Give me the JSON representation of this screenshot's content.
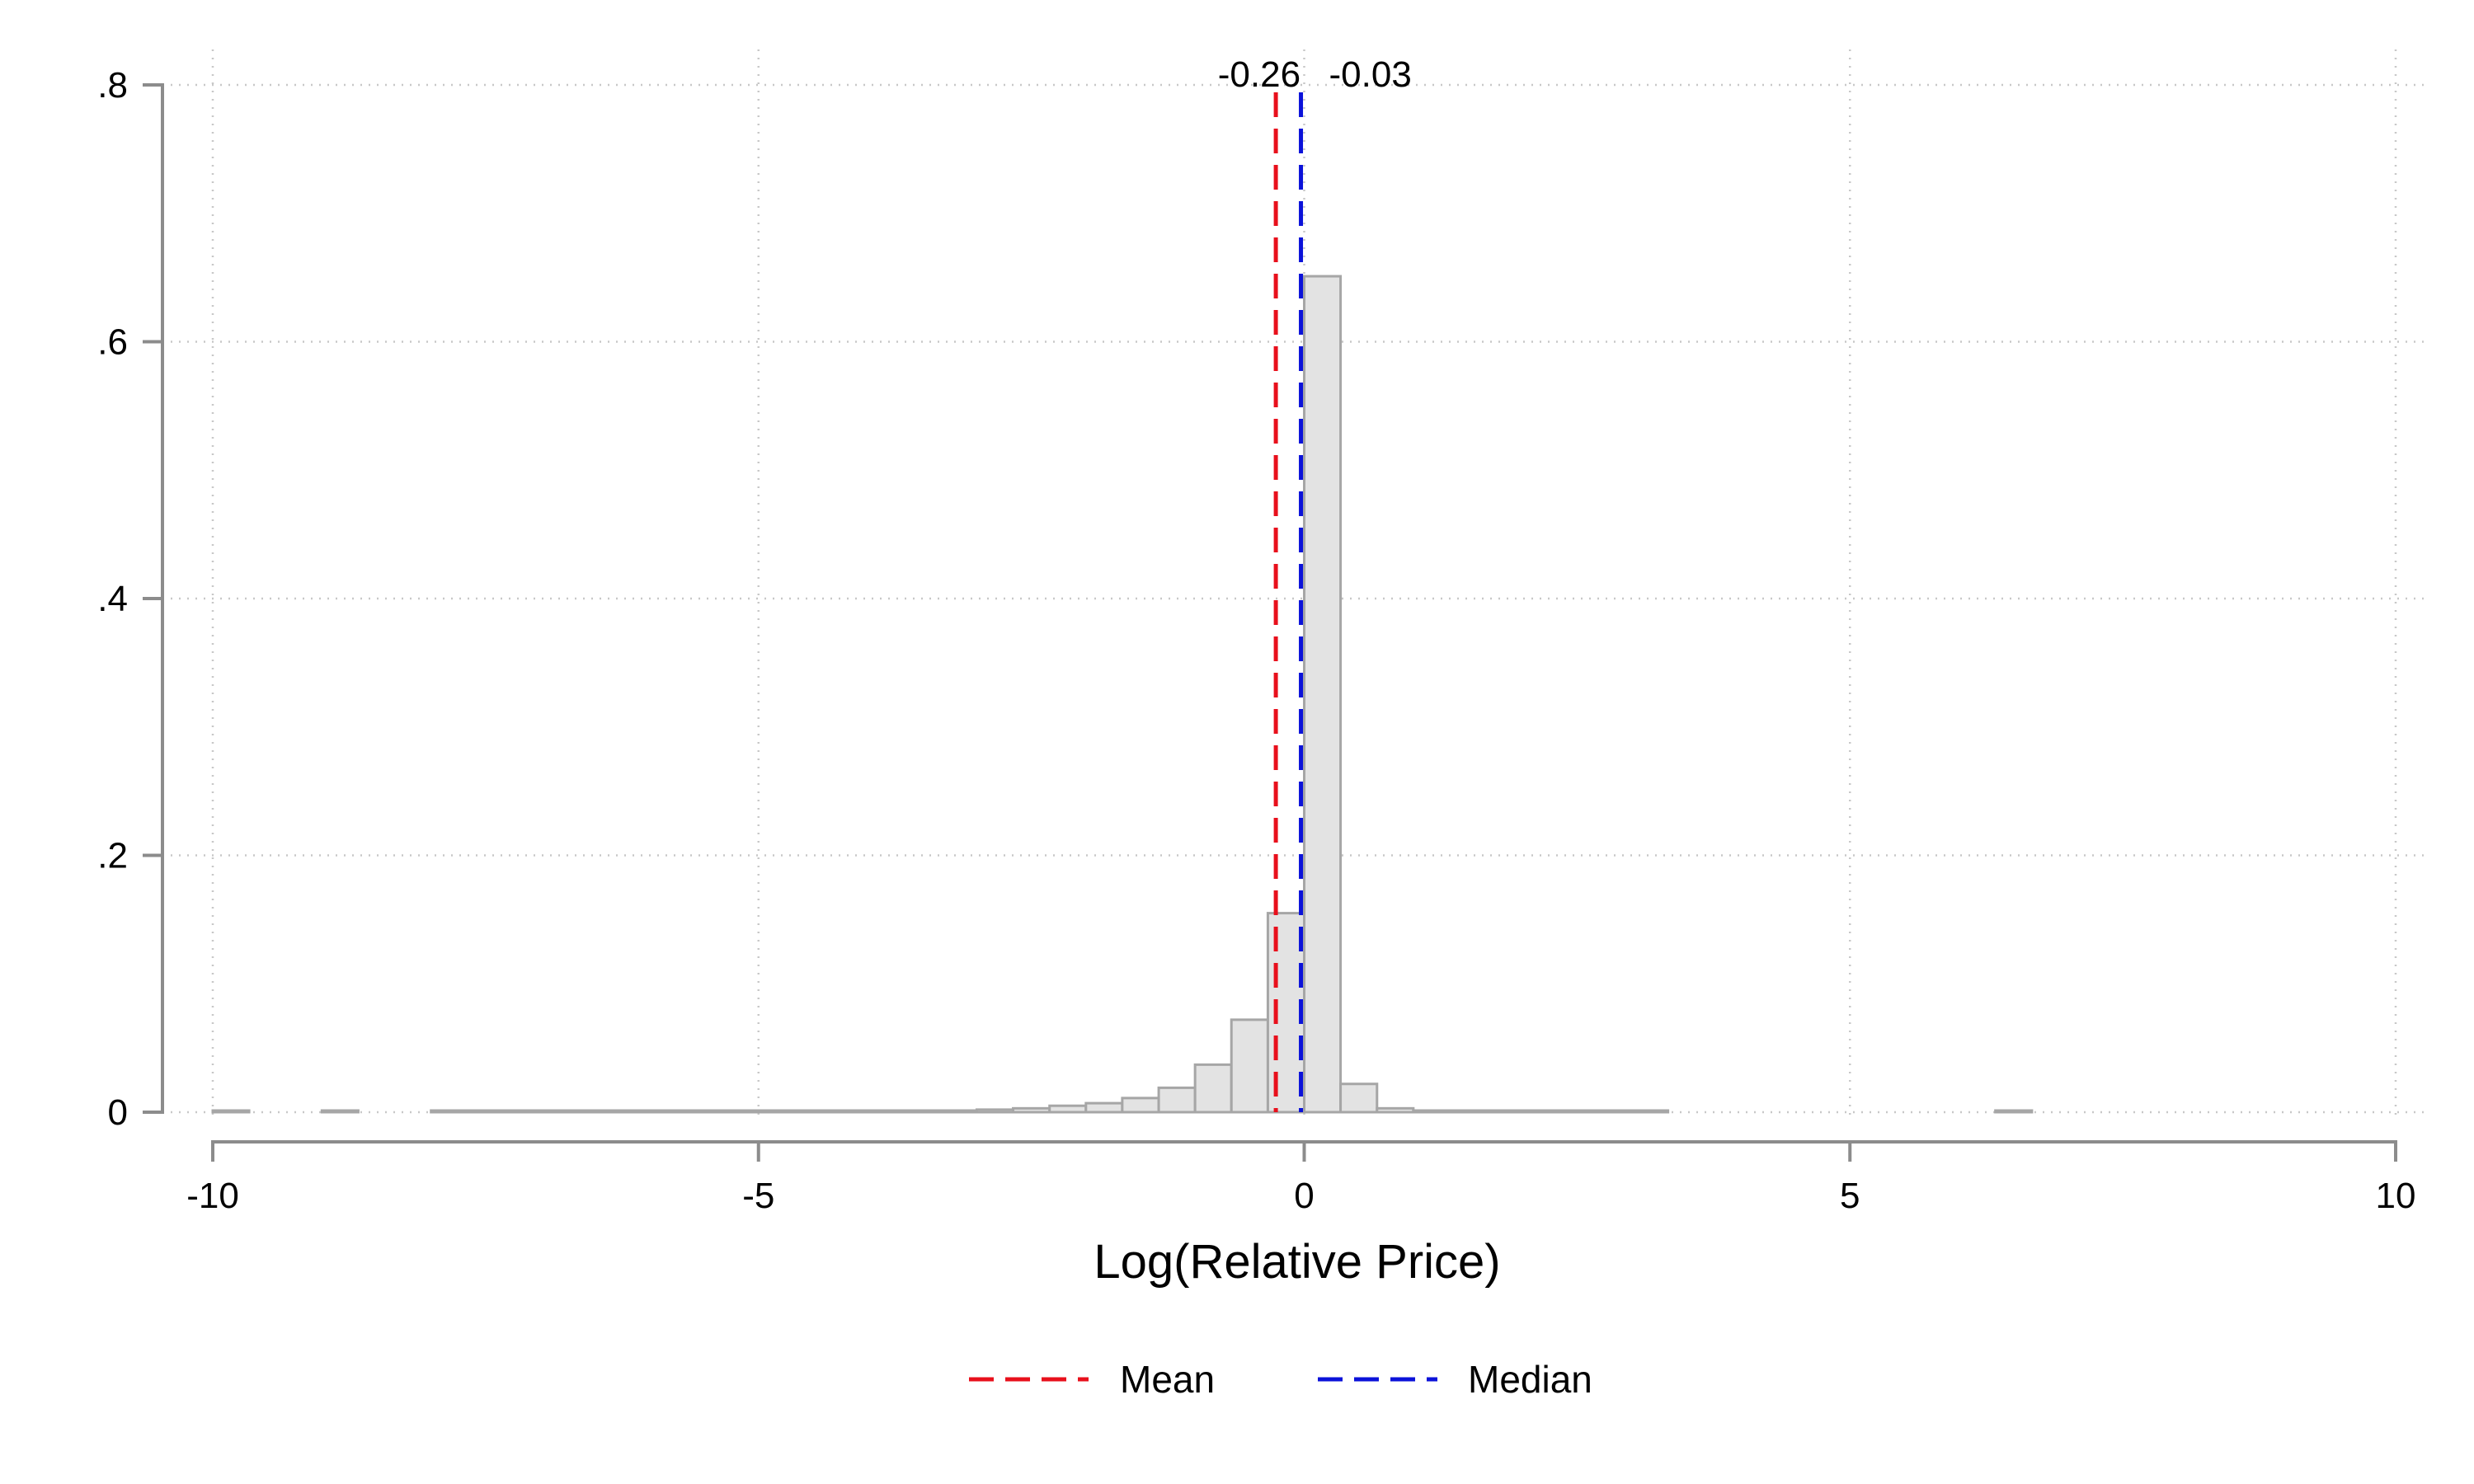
{
  "chart_data": {
    "type": "bar",
    "subtype": "histogram",
    "xlabel": "Log(Relative Price)",
    "ylabel": "",
    "xlim": [
      -10,
      10
    ],
    "ylim": [
      0,
      0.8
    ],
    "x_ticks": [
      -10,
      -5,
      0,
      5,
      10
    ],
    "x_tick_labels": [
      "-10",
      "-5",
      "0",
      "5",
      "10"
    ],
    "y_ticks": [
      0,
      0.2,
      0.4,
      0.6,
      0.8
    ],
    "y_tick_labels": [
      "0",
      ".2",
      ".4",
      ".6",
      ".8"
    ],
    "grid": true,
    "legend_position": "bottom",
    "bin_width": 0.333,
    "bins": [
      {
        "x0": -10.0,
        "x1": -9.667,
        "value": 0.001
      },
      {
        "x0": -9.0,
        "x1": -8.667,
        "value": 0.001
      },
      {
        "x0": -8.0,
        "x1": -7.667,
        "value": 0.001
      },
      {
        "x0": -7.667,
        "x1": -7.333,
        "value": 0.001
      },
      {
        "x0": -7.333,
        "x1": -7.0,
        "value": 0.001
      },
      {
        "x0": -7.0,
        "x1": -6.667,
        "value": 0.001
      },
      {
        "x0": -6.667,
        "x1": -6.333,
        "value": 0.001
      },
      {
        "x0": -6.333,
        "x1": -6.0,
        "value": 0.001
      },
      {
        "x0": -6.0,
        "x1": -5.667,
        "value": 0.001
      },
      {
        "x0": -5.667,
        "x1": -5.333,
        "value": 0.001
      },
      {
        "x0": -5.333,
        "x1": -5.0,
        "value": 0.001
      },
      {
        "x0": -5.0,
        "x1": -4.667,
        "value": 0.001
      },
      {
        "x0": -4.667,
        "x1": -4.333,
        "value": 0.001
      },
      {
        "x0": -4.333,
        "x1": -4.0,
        "value": 0.001
      },
      {
        "x0": -4.0,
        "x1": -3.667,
        "value": 0.001
      },
      {
        "x0": -3.667,
        "x1": -3.333,
        "value": 0.001
      },
      {
        "x0": -3.333,
        "x1": -3.0,
        "value": 0.001
      },
      {
        "x0": -3.0,
        "x1": -2.667,
        "value": 0.002
      },
      {
        "x0": -2.667,
        "x1": -2.333,
        "value": 0.003
      },
      {
        "x0": -2.333,
        "x1": -2.0,
        "value": 0.005
      },
      {
        "x0": -2.0,
        "x1": -1.667,
        "value": 0.007
      },
      {
        "x0": -1.667,
        "x1": -1.333,
        "value": 0.011
      },
      {
        "x0": -1.333,
        "x1": -1.0,
        "value": 0.019
      },
      {
        "x0": -1.0,
        "x1": -0.667,
        "value": 0.037
      },
      {
        "x0": -0.667,
        "x1": -0.333,
        "value": 0.072
      },
      {
        "x0": -0.333,
        "x1": 0.0,
        "value": 0.155
      },
      {
        "x0": 0.0,
        "x1": 0.333,
        "value": 0.651
      },
      {
        "x0": 0.333,
        "x1": 0.667,
        "value": 0.022
      },
      {
        "x0": 0.667,
        "x1": 1.0,
        "value": 0.003
      },
      {
        "x0": 1.0,
        "x1": 1.333,
        "value": 0.001
      },
      {
        "x0": 1.333,
        "x1": 1.667,
        "value": 0.001
      },
      {
        "x0": 1.667,
        "x1": 2.0,
        "value": 0.001
      },
      {
        "x0": 2.0,
        "x1": 2.333,
        "value": 0.001
      },
      {
        "x0": 2.333,
        "x1": 2.667,
        "value": 0.001
      },
      {
        "x0": 2.667,
        "x1": 3.0,
        "value": 0.001
      },
      {
        "x0": 3.0,
        "x1": 3.333,
        "value": 0.001
      },
      {
        "x0": 6.333,
        "x1": 6.667,
        "value": 0.001
      }
    ],
    "reference_lines": [
      {
        "name": "Mean",
        "x": -0.26,
        "label": "-0.26",
        "color": "#e8101c"
      },
      {
        "name": "Median",
        "x": -0.03,
        "label": "-0.03",
        "color": "#0b12d9"
      }
    ],
    "legend": [
      {
        "name": "Mean",
        "color": "#e8101c"
      },
      {
        "name": "Median",
        "color": "#0b12d9"
      }
    ]
  },
  "colors": {
    "bar_fill": "#e3e3e3",
    "bar_stroke": "#a6a6a6",
    "axis": "#8c8c8c",
    "grid": "#c8c8c8"
  }
}
